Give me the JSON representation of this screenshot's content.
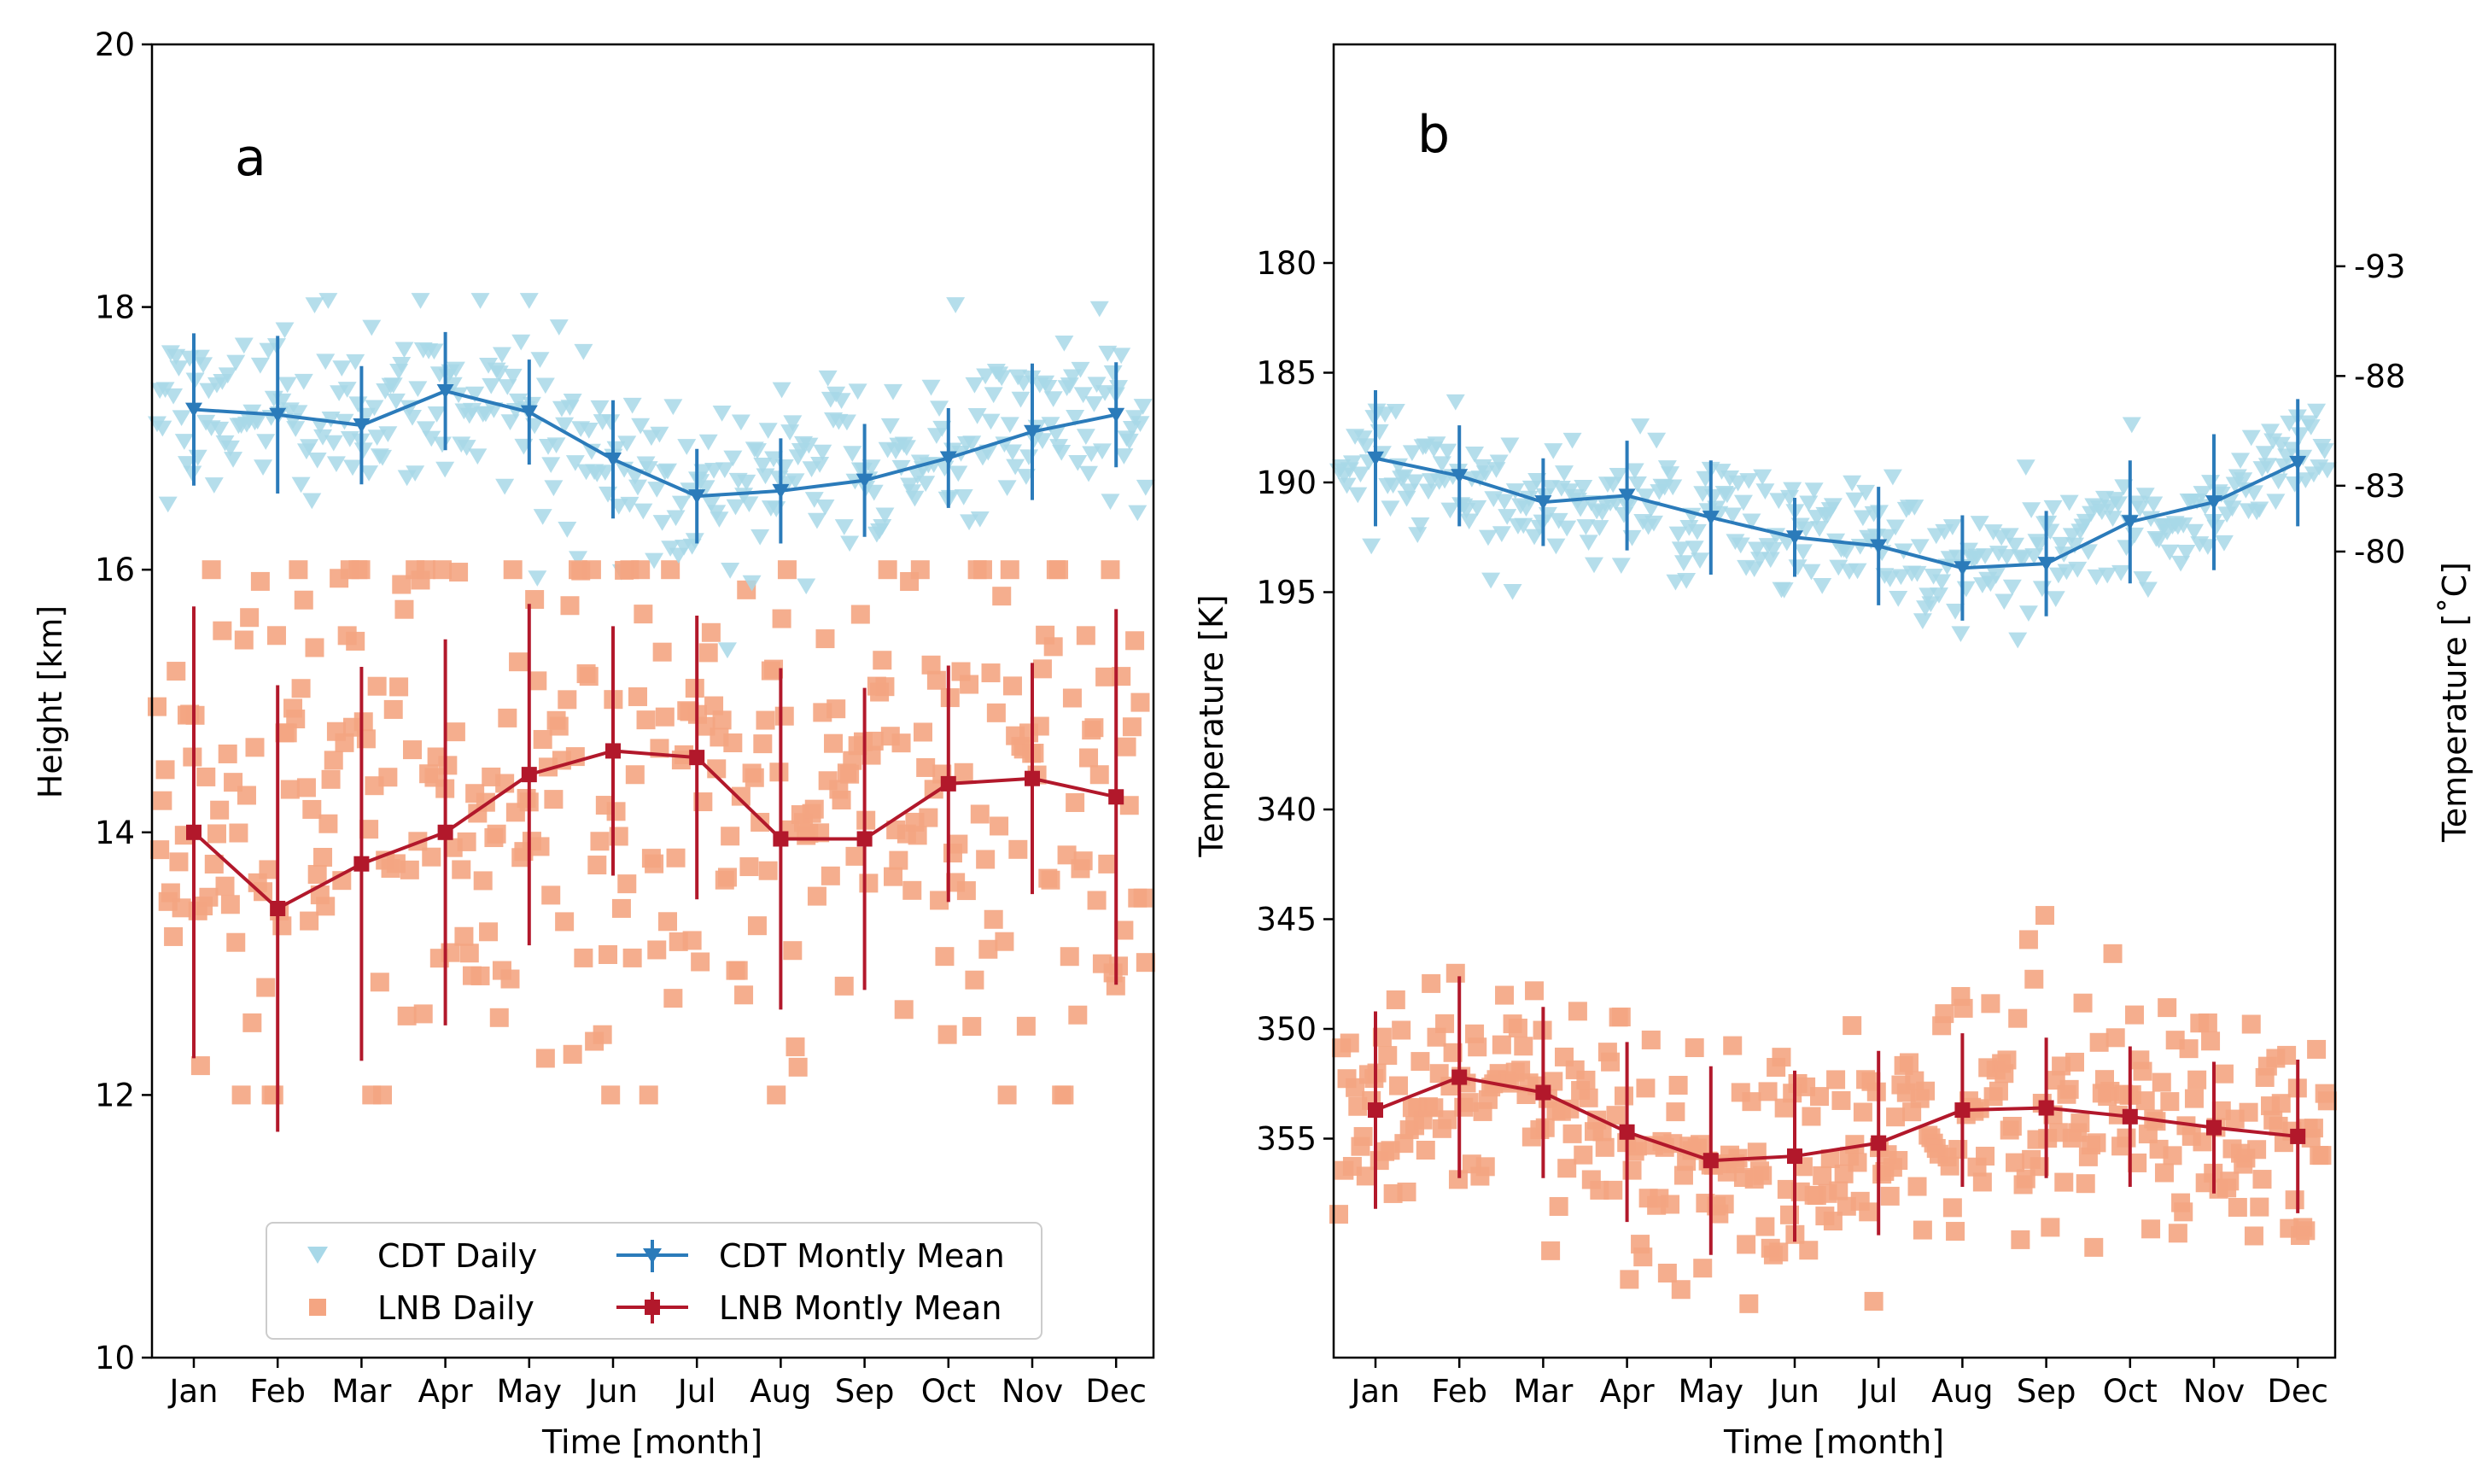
{
  "chart_data": [
    {
      "panel": "a",
      "type": "scatter+line",
      "xlabel": "Time [month]",
      "ylabel": "Height [km]",
      "ylim": [
        10,
        20
      ],
      "yticks": [
        10,
        12,
        14,
        16,
        18,
        20
      ],
      "categories": [
        "Jan",
        "Feb",
        "Mar",
        "Apr",
        "May",
        "Jun",
        "Jul",
        "Aug",
        "Sep",
        "Oct",
        "Nov",
        "Dec"
      ],
      "series": [
        {
          "name": "CDT Montly Mean",
          "color": "#2b7bba",
          "values": [
            17.22,
            17.18,
            17.1,
            17.36,
            17.2,
            16.84,
            16.56,
            16.6,
            16.68,
            16.85,
            17.05,
            17.18
          ],
          "errors": [
            0.58,
            0.6,
            0.45,
            0.45,
            0.4,
            0.45,
            0.36,
            0.4,
            0.43,
            0.38,
            0.52,
            0.4
          ]
        },
        {
          "name": "LNB Montly Mean",
          "color": "#b2182b",
          "values": [
            14.0,
            13.42,
            13.76,
            14.0,
            14.44,
            14.62,
            14.57,
            13.95,
            13.95,
            14.37,
            14.41,
            14.27
          ],
          "errors": [
            1.72,
            1.7,
            1.5,
            1.47,
            1.3,
            0.95,
            1.08,
            1.3,
            1.15,
            0.9,
            0.88,
            1.43
          ]
        },
        {
          "name": "CDT Daily",
          "color": "#a8d8e8",
          "marker": "triangle-down",
          "center": 17.0,
          "spread": 0.5
        },
        {
          "name": "LNB Daily",
          "color": "#f4a582",
          "marker": "square",
          "center": 14.0,
          "spread": 1.2
        }
      ],
      "legend": {
        "placement": "lower-center",
        "items": [
          "CDT Daily",
          "CDT Montly Mean",
          "LNB Daily",
          "LNB Montly Mean"
        ]
      }
    },
    {
      "panel": "b",
      "type": "scatter+line",
      "xlabel": "Time [month]",
      "ylabel": "Temperature [K]",
      "ylabel_right": "Temperature [$^\\circ$C]",
      "ylabel_right_display": "Temperature [˚C]",
      "y_axis": "inverted, broken",
      "yticks_left": [
        180,
        185,
        190,
        195,
        340,
        345,
        350,
        355
      ],
      "yticks_right": [
        "-93",
        "-88",
        "-83",
        "-80"
      ],
      "categories": [
        "Jan",
        "Feb",
        "Mar",
        "Apr",
        "May",
        "Jun",
        "Jul",
        "Aug",
        "Sep",
        "Oct",
        "Nov",
        "Dec"
      ],
      "series": [
        {
          "name": "CDT Montly Mean",
          "color": "#2b7bba",
          "values": [
            188.9,
            189.7,
            190.9,
            190.6,
            191.6,
            192.5,
            192.9,
            193.9,
            193.7,
            191.8,
            190.9,
            189.1
          ],
          "errors": [
            3.1,
            2.3,
            2.0,
            2.5,
            2.6,
            1.8,
            2.7,
            2.4,
            2.4,
            2.8,
            3.1,
            2.9
          ]
        },
        {
          "name": "LNB Montly Mean",
          "color": "#b2182b",
          "values": [
            353.7,
            352.2,
            352.9,
            354.7,
            356.0,
            355.8,
            355.2,
            353.7,
            353.6,
            354.0,
            354.5,
            354.9
          ],
          "errors": [
            4.5,
            4.6,
            3.9,
            4.1,
            4.3,
            3.9,
            4.2,
            3.5,
            3.2,
            3.2,
            3.0,
            3.5
          ]
        },
        {
          "name": "CDT Daily",
          "color": "#a8d8e8",
          "marker": "triangle-down"
        },
        {
          "name": "LNB Daily",
          "color": "#f4a582",
          "marker": "square"
        }
      ]
    }
  ]
}
